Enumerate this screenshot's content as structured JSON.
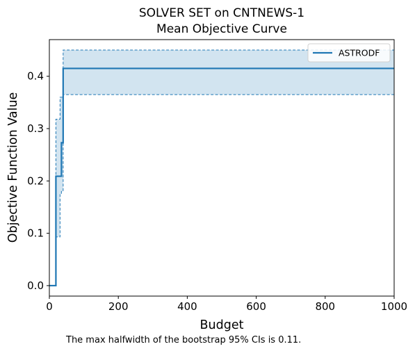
{
  "chart_data": {
    "type": "line",
    "title": "SOLVER SET on CNTNEWS-1",
    "subtitle": "Mean Objective Curve",
    "xlabel": "Budget",
    "ylabel": "Objective Function Value",
    "xlim": [
      0,
      1000
    ],
    "ylim": [
      -0.02,
      0.47
    ],
    "xticks": [
      0,
      200,
      400,
      600,
      800,
      1000
    ],
    "xtick_labels": [
      "0",
      "200",
      "400",
      "600",
      "800",
      "1000"
    ],
    "yticks": [
      0.0,
      0.1,
      0.2,
      0.3,
      0.4
    ],
    "ytick_labels": [
      "0.0",
      "0.1",
      "0.2",
      "0.3",
      "0.4"
    ],
    "grid": false,
    "legend": {
      "position": "top-right",
      "entries": [
        "ASTRODF"
      ]
    },
    "colors": {
      "line": "#1f77b4",
      "fill": "#1f77b4"
    },
    "series": [
      {
        "name": "ASTRODF",
        "step": "post",
        "x": [
          0,
          19,
          35,
          40,
          1000
        ],
        "y": [
          0.0,
          0.209,
          0.273,
          0.415,
          0.415
        ],
        "ci_upper_x": [
          0,
          19,
          31,
          35,
          40,
          1000
        ],
        "ci_upper": [
          0.0,
          0.318,
          0.36,
          0.36,
          0.45,
          0.45
        ],
        "ci_lower_x": [
          0,
          19,
          31,
          35,
          40,
          1000
        ],
        "ci_lower": [
          0.0,
          0.093,
          0.175,
          0.18,
          0.365,
          0.365
        ]
      }
    ],
    "footnote": "The max halfwidth of the bootstrap 95% CIs is 0.11."
  }
}
